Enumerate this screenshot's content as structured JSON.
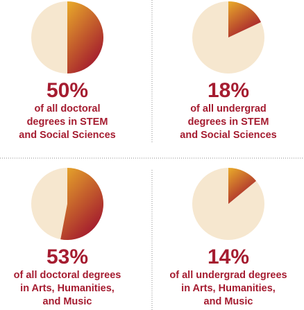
{
  "chart_data": [
    {
      "type": "pie",
      "values": [
        50
      ],
      "value_labels": [
        "50%"
      ],
      "caption": [
        "of all doctoral",
        "degrees in STEM",
        "and Social Sciences"
      ],
      "color": [
        "#e9ab2a",
        "#a31a2e"
      ],
      "background_color": "#f6e7cf"
    },
    {
      "type": "pie",
      "values": [
        18
      ],
      "value_labels": [
        "18%"
      ],
      "caption": [
        "of all undergrad",
        "degrees in STEM",
        "and Social Sciences"
      ],
      "color": [
        "#e9ab2a",
        "#a31a2e"
      ],
      "background_color": "#f6e7cf"
    },
    {
      "type": "pie",
      "values": [
        53
      ],
      "value_labels": [
        "53%"
      ],
      "caption": [
        "of all doctoral degrees",
        "in Arts, Humanities,",
        "and Music"
      ],
      "color": [
        "#e9ab2a",
        "#a31a2e"
      ],
      "background_color": "#f6e7cf"
    },
    {
      "type": "pie",
      "values": [
        14
      ],
      "value_labels": [
        "14%"
      ],
      "caption": [
        "of all undergrad degrees",
        "in Arts, Humanities,",
        "and Music"
      ],
      "color": [
        "#e9ab2a",
        "#a31a2e"
      ],
      "background_color": "#f6e7cf"
    }
  ]
}
